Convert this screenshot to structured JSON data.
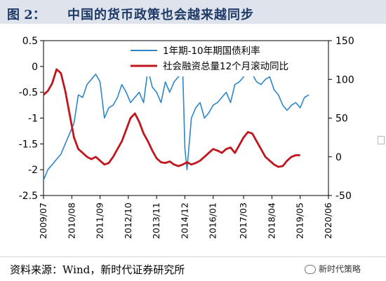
{
  "header": {
    "label": "图 2：",
    "title": "中国的货币政策也会越来越同步"
  },
  "footer": {
    "source": "资料来源：Wind，新时代证券研究所",
    "wechat": "新时代策略"
  },
  "colors": {
    "series_blue": "#2e86c8",
    "series_red": "#c0161d",
    "header_bg": "#dfe4ec",
    "title_color": "#1f3a68"
  },
  "chart_data": {
    "type": "line",
    "left_axis": {
      "min": -2.5,
      "max": 0.5,
      "ticks": [
        "0.5",
        "0",
        "-0.5",
        "-1",
        "-1.5",
        "-2",
        "-2.5"
      ]
    },
    "right_axis": {
      "min": -50,
      "max": 150,
      "ticks": [
        "150",
        "100",
        "50",
        "0",
        "-50"
      ]
    },
    "x_ticks": [
      "2009/07",
      "2010/08",
      "2011/09",
      "2012/10",
      "2013/11",
      "2014/12",
      "2016/01",
      "2017/03",
      "2018/04",
      "2019/05",
      "2020/06"
    ],
    "x_range": [
      "2009-07",
      "2020-06"
    ],
    "grid": false,
    "legend_position": "top-center",
    "series": [
      {
        "name": "1年期-10年期国债利率",
        "axis": "left",
        "color": "#2e86c8",
        "points": [
          [
            "2009-07",
            -2.2
          ],
          [
            "2009-09",
            -2.0
          ],
          [
            "2009-11",
            -1.9
          ],
          [
            "2010-01",
            -1.8
          ],
          [
            "2010-03",
            -1.7
          ],
          [
            "2010-05",
            -1.5
          ],
          [
            "2010-07",
            -1.3
          ],
          [
            "2010-09",
            -1.1
          ],
          [
            "2010-11",
            -0.55
          ],
          [
            "2011-01",
            -0.6
          ],
          [
            "2011-03",
            -0.35
          ],
          [
            "2011-05",
            -0.25
          ],
          [
            "2011-07",
            -0.15
          ],
          [
            "2011-09",
            -0.3
          ],
          [
            "2011-11",
            -1.0
          ],
          [
            "2012-01",
            -0.8
          ],
          [
            "2012-03",
            -0.75
          ],
          [
            "2012-05",
            -0.6
          ],
          [
            "2012-07",
            -0.35
          ],
          [
            "2012-09",
            -0.5
          ],
          [
            "2012-11",
            -0.7
          ],
          [
            "2013-01",
            -0.6
          ],
          [
            "2013-03",
            -0.5
          ],
          [
            "2013-05",
            -0.7
          ],
          [
            "2013-07",
            -0.05
          ],
          [
            "2013-09",
            -0.4
          ],
          [
            "2013-11",
            -0.5
          ],
          [
            "2014-01",
            -0.7
          ],
          [
            "2014-03",
            -0.3
          ],
          [
            "2014-05",
            -0.5
          ],
          [
            "2014-07",
            -0.3
          ],
          [
            "2014-09",
            -0.2
          ],
          [
            "2014-11",
            -0.1
          ],
          [
            "2014-12",
            -1.6
          ],
          [
            "2015-01",
            -2.0
          ],
          [
            "2015-03",
            -1.0
          ],
          [
            "2015-05",
            -0.8
          ],
          [
            "2015-07",
            -0.7
          ],
          [
            "2015-09",
            -1.0
          ],
          [
            "2015-11",
            -0.9
          ],
          [
            "2016-01",
            -0.75
          ],
          [
            "2016-03",
            -0.7
          ],
          [
            "2016-05",
            -0.6
          ],
          [
            "2016-07",
            -0.5
          ],
          [
            "2016-09",
            -0.7
          ],
          [
            "2016-11",
            -0.35
          ],
          [
            "2017-01",
            -0.3
          ],
          [
            "2017-03",
            -0.2
          ],
          [
            "2017-05",
            -0.05
          ],
          [
            "2017-07",
            -0.15
          ],
          [
            "2017-09",
            -0.3
          ],
          [
            "2017-11",
            -0.35
          ],
          [
            "2018-01",
            -0.25
          ],
          [
            "2018-03",
            -0.2
          ],
          [
            "2018-05",
            -0.45
          ],
          [
            "2018-07",
            -0.55
          ],
          [
            "2018-09",
            -0.75
          ],
          [
            "2018-11",
            -0.85
          ],
          [
            "2019-01",
            -0.75
          ],
          [
            "2019-03",
            -0.7
          ],
          [
            "2019-05",
            -0.8
          ],
          [
            "2019-07",
            -0.6
          ],
          [
            "2019-09",
            -0.55
          ]
        ]
      },
      {
        "name": "社会融资总量12个月滚动同比",
        "axis": "right",
        "color": "#c0161d",
        "points": [
          [
            "2009-07",
            80
          ],
          [
            "2009-09",
            85
          ],
          [
            "2009-11",
            95
          ],
          [
            "2010-01",
            113
          ],
          [
            "2010-03",
            108
          ],
          [
            "2010-05",
            85
          ],
          [
            "2010-07",
            55
          ],
          [
            "2010-09",
            25
          ],
          [
            "2010-11",
            10
          ],
          [
            "2011-01",
            5
          ],
          [
            "2011-03",
            0
          ],
          [
            "2011-05",
            -3
          ],
          [
            "2011-07",
            0
          ],
          [
            "2011-09",
            -5
          ],
          [
            "2011-11",
            -10
          ],
          [
            "2012-01",
            -8
          ],
          [
            "2012-03",
            0
          ],
          [
            "2012-05",
            10
          ],
          [
            "2012-07",
            20
          ],
          [
            "2012-09",
            35
          ],
          [
            "2012-11",
            50
          ],
          [
            "2013-01",
            56
          ],
          [
            "2013-03",
            45
          ],
          [
            "2013-05",
            30
          ],
          [
            "2013-07",
            20
          ],
          [
            "2013-09",
            8
          ],
          [
            "2013-11",
            -2
          ],
          [
            "2014-01",
            -7
          ],
          [
            "2014-03",
            -8
          ],
          [
            "2014-05",
            -6
          ],
          [
            "2014-07",
            -10
          ],
          [
            "2014-09",
            -12
          ],
          [
            "2014-11",
            -10
          ],
          [
            "2015-01",
            -7
          ],
          [
            "2015-03",
            -10
          ],
          [
            "2015-05",
            -8
          ],
          [
            "2015-07",
            -5
          ],
          [
            "2015-09",
            0
          ],
          [
            "2015-11",
            5
          ],
          [
            "2016-01",
            10
          ],
          [
            "2016-03",
            8
          ],
          [
            "2016-05",
            5
          ],
          [
            "2016-07",
            10
          ],
          [
            "2016-09",
            12
          ],
          [
            "2016-11",
            5
          ],
          [
            "2017-01",
            15
          ],
          [
            "2017-03",
            25
          ],
          [
            "2017-05",
            32
          ],
          [
            "2017-07",
            30
          ],
          [
            "2017-09",
            20
          ],
          [
            "2017-11",
            10
          ],
          [
            "2018-01",
            0
          ],
          [
            "2018-03",
            -5
          ],
          [
            "2018-05",
            -10
          ],
          [
            "2018-07",
            -13
          ],
          [
            "2018-09",
            -12
          ],
          [
            "2018-11",
            -5
          ],
          [
            "2019-01",
            0
          ],
          [
            "2019-03",
            2
          ],
          [
            "2019-05",
            2
          ]
        ]
      }
    ]
  }
}
